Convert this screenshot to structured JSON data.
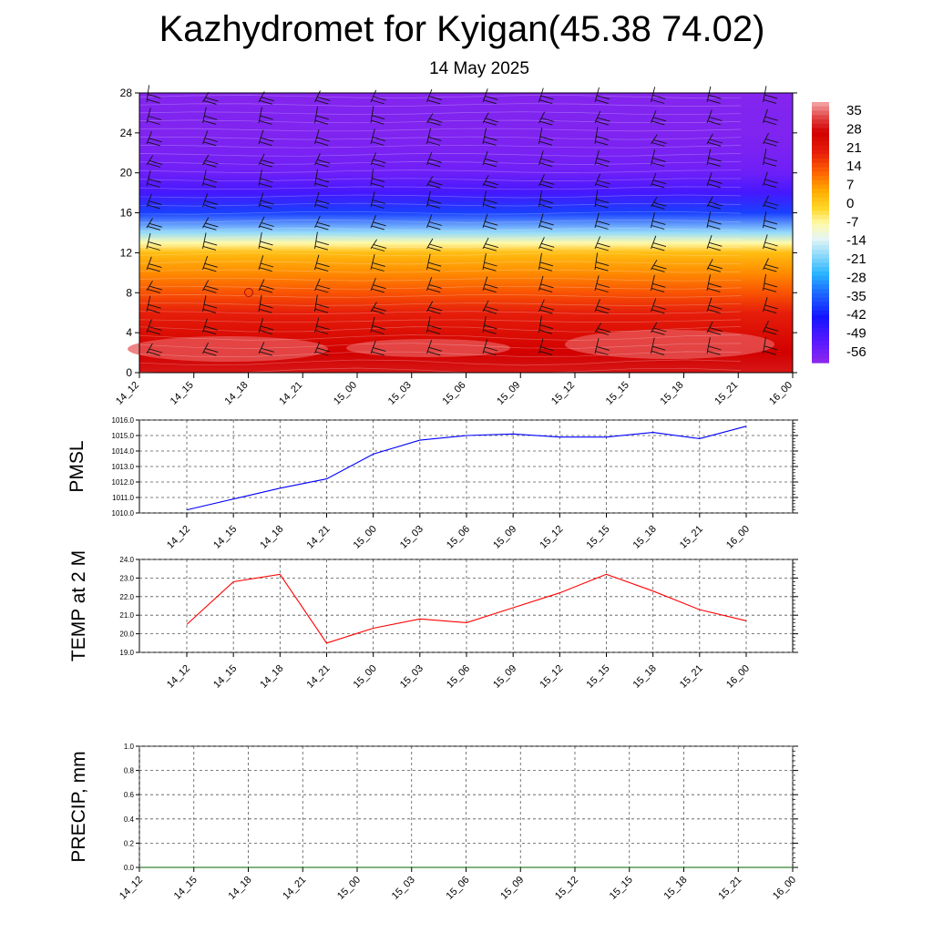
{
  "title": "Kazhydromet for Kyigan(45.38 74.02)",
  "subtitle": "14 May 2025",
  "chart_data": [
    {
      "type": "heatmap",
      "title": "",
      "xlabel": "",
      "ylabel": "",
      "x_ticks": [
        "14_12",
        "14_15",
        "14_18",
        "14_21",
        "15_00",
        "15_03",
        "15_06",
        "15_09",
        "15_12",
        "15_15",
        "15_18",
        "15_21",
        "16_00"
      ],
      "ylim": [
        0,
        28
      ],
      "y_ticks": [
        "0",
        "4",
        "8",
        "12",
        "16",
        "20",
        "24",
        "28"
      ],
      "colorbar_labels": [
        "35",
        "28",
        "21",
        "14",
        "7",
        "0",
        "-7",
        "-14",
        "-21",
        "-28",
        "-35",
        "-42",
        "-49",
        "-56"
      ],
      "colorbar_range": [
        -63,
        40
      ],
      "temperature_by_level": {
        "levels": [
          0,
          2,
          4,
          6,
          8,
          10,
          12,
          13,
          14,
          16,
          18,
          20,
          22,
          24,
          26,
          28
        ],
        "values": [
          30,
          28,
          24,
          20,
          14,
          8,
          2,
          -8,
          -20,
          -40,
          -52,
          -58,
          -60,
          -61,
          -61,
          -62
        ]
      },
      "overlay": "wind barbs",
      "colors": {
        "warm": "#d40000",
        "hot": "#e85a5a",
        "yellow": "#fff7a0",
        "cold": "#1a1aff",
        "coldest": "#8a2be2"
      }
    },
    {
      "type": "line",
      "ylabel": "PMSL",
      "x_ticks": [
        "14_12",
        "14_15",
        "14_18",
        "14_21",
        "15_00",
        "15_03",
        "15_06",
        "15_09",
        "15_12",
        "15_15",
        "15_18",
        "15_21",
        "16_00"
      ],
      "ylim": [
        1010.0,
        1016.0
      ],
      "y_ticks": [
        "1010.0",
        "1011.0",
        "1012.0",
        "1013.0",
        "1014.0",
        "1015.0",
        "1016.0"
      ],
      "series": [
        {
          "values": [
            1010.2,
            1010.9,
            1011.6,
            1012.2,
            1013.8,
            1014.7,
            1015.0,
            1015.1,
            1014.9,
            1014.9,
            1015.2,
            1014.8,
            1015.6
          ],
          "color": "#0000ff"
        }
      ]
    },
    {
      "type": "line",
      "ylabel": "TEMP at 2 M",
      "x_ticks": [
        "14_12",
        "14_15",
        "14_18",
        "14_21",
        "15_00",
        "15_03",
        "15_06",
        "15_09",
        "15_12",
        "15_15",
        "15_18",
        "15_21",
        "16_00"
      ],
      "ylim": [
        19.0,
        24.0
      ],
      "y_ticks": [
        "19.0",
        "20.0",
        "21.0",
        "22.0",
        "23.0",
        "24.0"
      ],
      "series": [
        {
          "values": [
            20.5,
            22.8,
            23.2,
            19.5,
            20.3,
            20.8,
            20.6,
            21.4,
            22.2,
            23.2,
            22.3,
            21.3,
            20.7
          ],
          "color": "#ff0000"
        }
      ]
    },
    {
      "type": "line",
      "ylabel": "PRECIP, mm",
      "x_ticks": [
        "14_12",
        "14_15",
        "14_18",
        "14_21",
        "15_00",
        "15_03",
        "15_06",
        "15_09",
        "15_12",
        "15_15",
        "15_18",
        "15_21",
        "16_00"
      ],
      "ylim": [
        0.0,
        1.0
      ],
      "y_ticks": [
        "0.0",
        "0.2",
        "0.4",
        "0.6",
        "0.8",
        "1.0"
      ],
      "series": [
        {
          "values": [
            0,
            0,
            0,
            0,
            0,
            0,
            0,
            0,
            0,
            0,
            0,
            0,
            0
          ],
          "color": "#006400"
        }
      ]
    }
  ]
}
